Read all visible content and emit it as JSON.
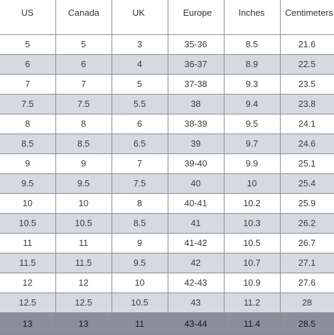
{
  "table": {
    "headers": [
      "US",
      "Canada",
      "UK",
      "Europe",
      "Inches",
      "Centimeters"
    ],
    "rows": [
      [
        "5",
        "5",
        "3",
        "35-36",
        "8.5",
        "21.6"
      ],
      [
        "6",
        "6",
        "4",
        "36-37",
        "8.9",
        "22.5"
      ],
      [
        "7",
        "7",
        "5",
        "37-38",
        "9.3",
        "23.5"
      ],
      [
        "7.5",
        "7.5",
        "5.5",
        "38",
        "9.4",
        "23.8"
      ],
      [
        "8",
        "8",
        "6",
        "38-39",
        "9.5",
        "24.1"
      ],
      [
        "8.5",
        "8.5",
        "6.5",
        "39",
        "9.7",
        "24.6"
      ],
      [
        "9",
        "9",
        "7",
        "39-40",
        "9.9",
        "25.1"
      ],
      [
        "9.5",
        "9.5",
        "7.5",
        "40",
        "10",
        "25.4"
      ],
      [
        "10",
        "10",
        "8",
        "40-41",
        "10.2",
        "25.9"
      ],
      [
        "10.5",
        "10.5",
        "8.5",
        "41",
        "10.3",
        "26.2"
      ],
      [
        "11",
        "11",
        "9",
        "41-42",
        "10.5",
        "26.7"
      ],
      [
        "11.5",
        "11.5",
        "9.5",
        "42",
        "10.7",
        "27.1"
      ],
      [
        "12",
        "12",
        "10",
        "42-43",
        "10.9",
        "27.6"
      ],
      [
        "12.5",
        "12.5",
        "10.5",
        "43",
        "11.2",
        "28"
      ],
      [
        "13",
        "13",
        "11",
        "43-44",
        "11.4",
        "28.5"
      ]
    ]
  },
  "colors": {
    "row_alt": "#d6d9e2",
    "row_last": "#8a8f9e",
    "border": "#8a8a8a"
  }
}
